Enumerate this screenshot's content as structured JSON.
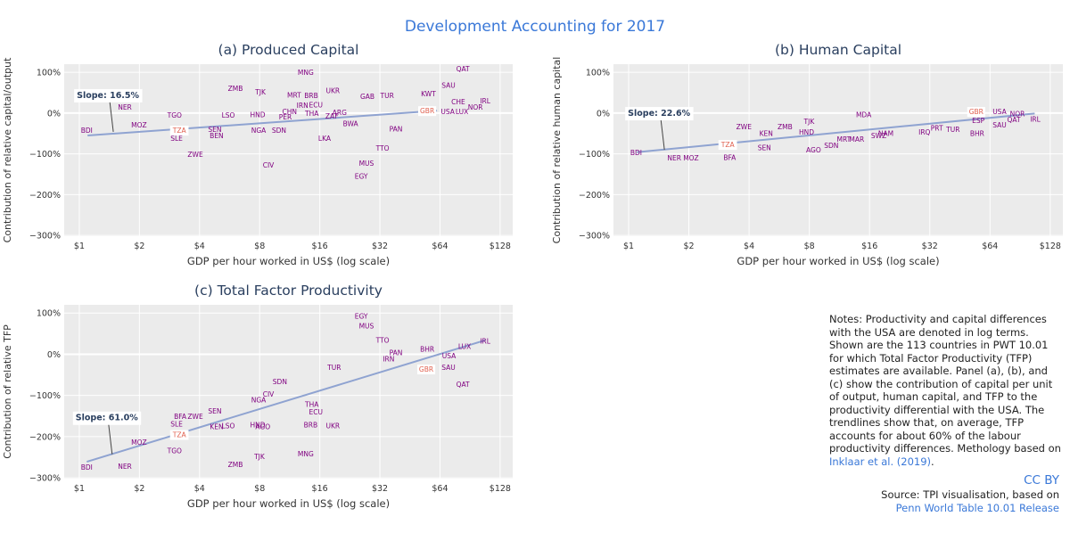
{
  "title": "Development Accounting for 2017",
  "chart_data": [
    {
      "type": "scatter",
      "title": "(a) Produced Capital",
      "xlabel": "GDP per hour worked in US$ (log scale)",
      "ylabel": "Contribution of relative capital/output",
      "xscale": "log",
      "xlim": [
        0.84,
        148
      ],
      "ylim": [
        -302,
        120
      ],
      "grid": true,
      "xticks": [
        {
          "value": 1,
          "label": "$1"
        },
        {
          "value": 2,
          "label": "$2"
        },
        {
          "value": 4,
          "label": "$4"
        },
        {
          "value": 8,
          "label": "$8"
        },
        {
          "value": 16,
          "label": "$16"
        },
        {
          "value": 32,
          "label": "$32"
        },
        {
          "value": 64,
          "label": "$64"
        },
        {
          "value": 128,
          "label": "$128"
        }
      ],
      "yticks": [
        {
          "value": 100,
          "label": "100%"
        },
        {
          "value": 0,
          "label": "0%"
        },
        {
          "value": -100,
          "label": "−100%"
        },
        {
          "value": -200,
          "label": "−200%"
        },
        {
          "value": -300,
          "label": "−300%"
        }
      ],
      "series": [
        {
          "color": "#800080",
          "labels": [
            "BDI",
            "NER",
            "MOZ",
            "TGO",
            "SLE",
            "ZWE",
            "LSO",
            "ZMB",
            "TJK",
            "SEN",
            "BEN",
            "HND",
            "NGA",
            "CIV",
            "PER",
            "MRT",
            "CHN",
            "BRB",
            "UKR",
            "MNG",
            "THA",
            "SDN",
            "MUS",
            "EGY",
            "TTO",
            "LKA",
            "PAN",
            "GAB",
            "QAT",
            "SAU",
            "IRL",
            "NOR",
            "CHE",
            "LUX",
            "USA",
            "KWT",
            "ARG",
            "ECU",
            "BWA",
            "IRN",
            "ZAF",
            "TUR"
          ],
          "x": [
            1.09,
            1.69,
            1.99,
            3.0,
            3.07,
            3.81,
            5.57,
            6.05,
            8.07,
            4.77,
            4.87,
            7.82,
            7.9,
            8.85,
            10.76,
            11.9,
            11.3,
            14.5,
            18.6,
            13.6,
            14.6,
            10.0,
            27.4,
            25.8,
            33.0,
            16.9,
            38.5,
            27.7,
            83.3,
            70.6,
            107.7,
            96.2,
            79,
            82.4,
            70,
            56,
            20.1,
            15.3,
            22.8,
            13.1,
            18.4,
            34.8
          ],
          "values": [
            -42,
            15,
            -29,
            -5,
            -62,
            -101,
            -5,
            61,
            52,
            -40,
            -55,
            -3,
            -42,
            -127,
            -9,
            45,
            4,
            43,
            56,
            100,
            0,
            -42,
            -123,
            -154,
            -86,
            -62,
            -38,
            41,
            109,
            69,
            30,
            15,
            28,
            4,
            4,
            48,
            2,
            21,
            -25,
            19,
            -7,
            43
          ]
        },
        {
          "color": "#e0604f",
          "label_background": "#ffffff",
          "labels": [
            "TZA",
            "GBR"
          ],
          "x": [
            3.17,
            55.2
          ],
          "values": [
            -42,
            6
          ]
        }
      ],
      "trendline": {
        "color": "#8fa3d1",
        "x": [
          1.1,
          61.8
        ],
        "values": [
          -55,
          6
        ]
      },
      "annotation": {
        "text": "Slope: 16.5%",
        "x": 1.48,
        "y": -46
      }
    },
    {
      "type": "scatter",
      "title": "(b) Human Capital",
      "xlabel": "GDP per hour worked in US$ (log scale)",
      "ylabel": "Contribution of relative human capital",
      "xscale": "log",
      "xlim": [
        0.84,
        148
      ],
      "ylim": [
        -302,
        120
      ],
      "grid": true,
      "xticks": [
        {
          "value": 1,
          "label": "$1"
        },
        {
          "value": 2,
          "label": "$2"
        },
        {
          "value": 4,
          "label": "$4"
        },
        {
          "value": 8,
          "label": "$8"
        },
        {
          "value": 16,
          "label": "$16"
        },
        {
          "value": 32,
          "label": "$32"
        },
        {
          "value": 64,
          "label": "$64"
        },
        {
          "value": 128,
          "label": "$128"
        }
      ],
      "yticks": [
        {
          "value": 100,
          "label": "100%"
        },
        {
          "value": 0,
          "label": "0%"
        },
        {
          "value": -100,
          "label": "−100%"
        },
        {
          "value": -200,
          "label": "−200%"
        },
        {
          "value": -300,
          "label": "−300%"
        }
      ],
      "series": [
        {
          "color": "#800080",
          "labels": [
            "BDI",
            "NER",
            "MOZ",
            "BFA",
            "ZWE",
            "KEN",
            "ZMB",
            "SEN",
            "TJK",
            "HND",
            "AGO",
            "SDN",
            "MRT",
            "MAR",
            "MDA",
            "NAM",
            "SWZ",
            "IRQ",
            "PRT",
            "TUR",
            "SAU",
            "QAT",
            "IRL",
            "NOR",
            "USA",
            "ESP",
            "BHR"
          ],
          "x": [
            1.09,
            1.69,
            2.05,
            3.2,
            3.77,
            4.87,
            6.05,
            4.77,
            7.98,
            7.75,
            8.4,
            10.3,
            11.9,
            13.8,
            14.95,
            19.3,
            17.8,
            30.1,
            34.7,
            41.8,
            71.4,
            84.2,
            107.7,
            87.7,
            71.4,
            55.9,
            55.2
          ],
          "values": [
            -97,
            -110,
            -110,
            -108,
            -33,
            -49,
            -33,
            -84,
            -20,
            -46,
            -90,
            -79,
            -64,
            -64,
            -3,
            -49,
            -55,
            -46,
            -36,
            -40,
            -29,
            -16,
            -14,
            -1,
            4,
            -18,
            -49
          ]
        },
        {
          "color": "#e0604f",
          "label_background": "#ffffff",
          "labels": [
            "TZA",
            "GBR"
          ],
          "x": [
            3.13,
            54.6
          ],
          "values": [
            -77,
            4
          ]
        }
      ],
      "trendline": {
        "color": "#8fa3d1",
        "x": [
          1.1,
          107
        ],
        "values": [
          -96,
          -1
        ]
      },
      "annotation": {
        "text": "Slope: 22.6%",
        "x": 1.51,
        "y": -90
      }
    },
    {
      "type": "scatter",
      "title": "(c) Total Factor Productivity",
      "xlabel": "GDP per hour worked in US$ (log scale)",
      "ylabel": "Contribution of relative TFP",
      "xscale": "log",
      "xlim": [
        0.84,
        148
      ],
      "ylim": [
        -302,
        120
      ],
      "grid": true,
      "xticks": [
        {
          "value": 1,
          "label": "$1"
        },
        {
          "value": 2,
          "label": "$2"
        },
        {
          "value": 4,
          "label": "$4"
        },
        {
          "value": 8,
          "label": "$8"
        },
        {
          "value": 16,
          "label": "$16"
        },
        {
          "value": 32,
          "label": "$32"
        },
        {
          "value": 64,
          "label": "$64"
        },
        {
          "value": 128,
          "label": "$128"
        }
      ],
      "yticks": [
        {
          "value": 100,
          "label": "100%"
        },
        {
          "value": 0,
          "label": "0%"
        },
        {
          "value": -100,
          "label": "−100%"
        },
        {
          "value": -200,
          "label": "−200%"
        },
        {
          "value": -300,
          "label": "−300%"
        }
      ],
      "series": [
        {
          "color": "#800080",
          "labels": [
            "BDI",
            "NER",
            "MOZ",
            "TGO",
            "SLE",
            "BFA",
            "ZWE",
            "TJK",
            "ZMB",
            "MNG",
            "SEN",
            "KEN",
            "LSO",
            "NGA",
            "HND",
            "AGO",
            "CIV",
            "SDN",
            "UKR",
            "BRB",
            "ECU",
            "THA",
            "EGY",
            "MUS",
            "TTO",
            "PAN",
            "BHR",
            "LUX",
            "IRL",
            "QAT",
            "SAU",
            "USA",
            "IRN",
            "TUR"
          ],
          "x": [
            1.09,
            1.69,
            1.99,
            3.0,
            3.07,
            3.2,
            3.81,
            7.98,
            6.05,
            13.6,
            4.77,
            4.87,
            5.57,
            7.9,
            7.82,
            8.3,
            8.85,
            10.1,
            18.6,
            14.4,
            15.3,
            14.6,
            25.8,
            27.4,
            33.0,
            38.5,
            55.2,
            85,
            107.7,
            83.3,
            70.6,
            71,
            35.4,
            18.9
          ],
          "values": [
            -274,
            -272,
            -213,
            -234,
            -169,
            -151,
            -151,
            -248,
            -267,
            -241,
            -138,
            -175,
            -173,
            -110,
            -171,
            -175,
            -96,
            -66,
            -173,
            -171,
            -140,
            -121,
            93,
            69,
            34,
            4,
            13,
            19,
            32,
            -73,
            -31,
            -3,
            -11,
            -31
          ]
        },
        {
          "color": "#e0604f",
          "label_background": "#ffffff",
          "labels": [
            "TZA",
            "GBR"
          ],
          "x": [
            3.17,
            54.6
          ],
          "values": [
            -195,
            -36
          ]
        }
      ],
      "trendline": {
        "color": "#8fa3d1",
        "x": [
          1.09,
          107.7
        ],
        "values": [
          -261,
          34
        ]
      },
      "annotation": {
        "text": "Slope: 61.0%",
        "x": 1.46,
        "y": -243
      }
    }
  ],
  "notes": {
    "text": "Notes: Productivity and capital differences with the USA are denoted in log terms. Shown are the 113 countries in PWT 10.01 for which Total Factor Productivity (TFP) estimates are available. Panel (a), (b), and (c) show the contribution of capital per unit of output, human capital, and TFP to the productivity differential with the USA. The trendlines show that, on average, TFP accounts for about 60% of the labour productivity differences. Methology based on ",
    "link": "Inklaar et al. (2019)",
    "link_end": "."
  },
  "source": {
    "license": "CC BY",
    "text": "Source: TPI visualisation, based on",
    "link": "Penn World Table 10.01 Release"
  }
}
